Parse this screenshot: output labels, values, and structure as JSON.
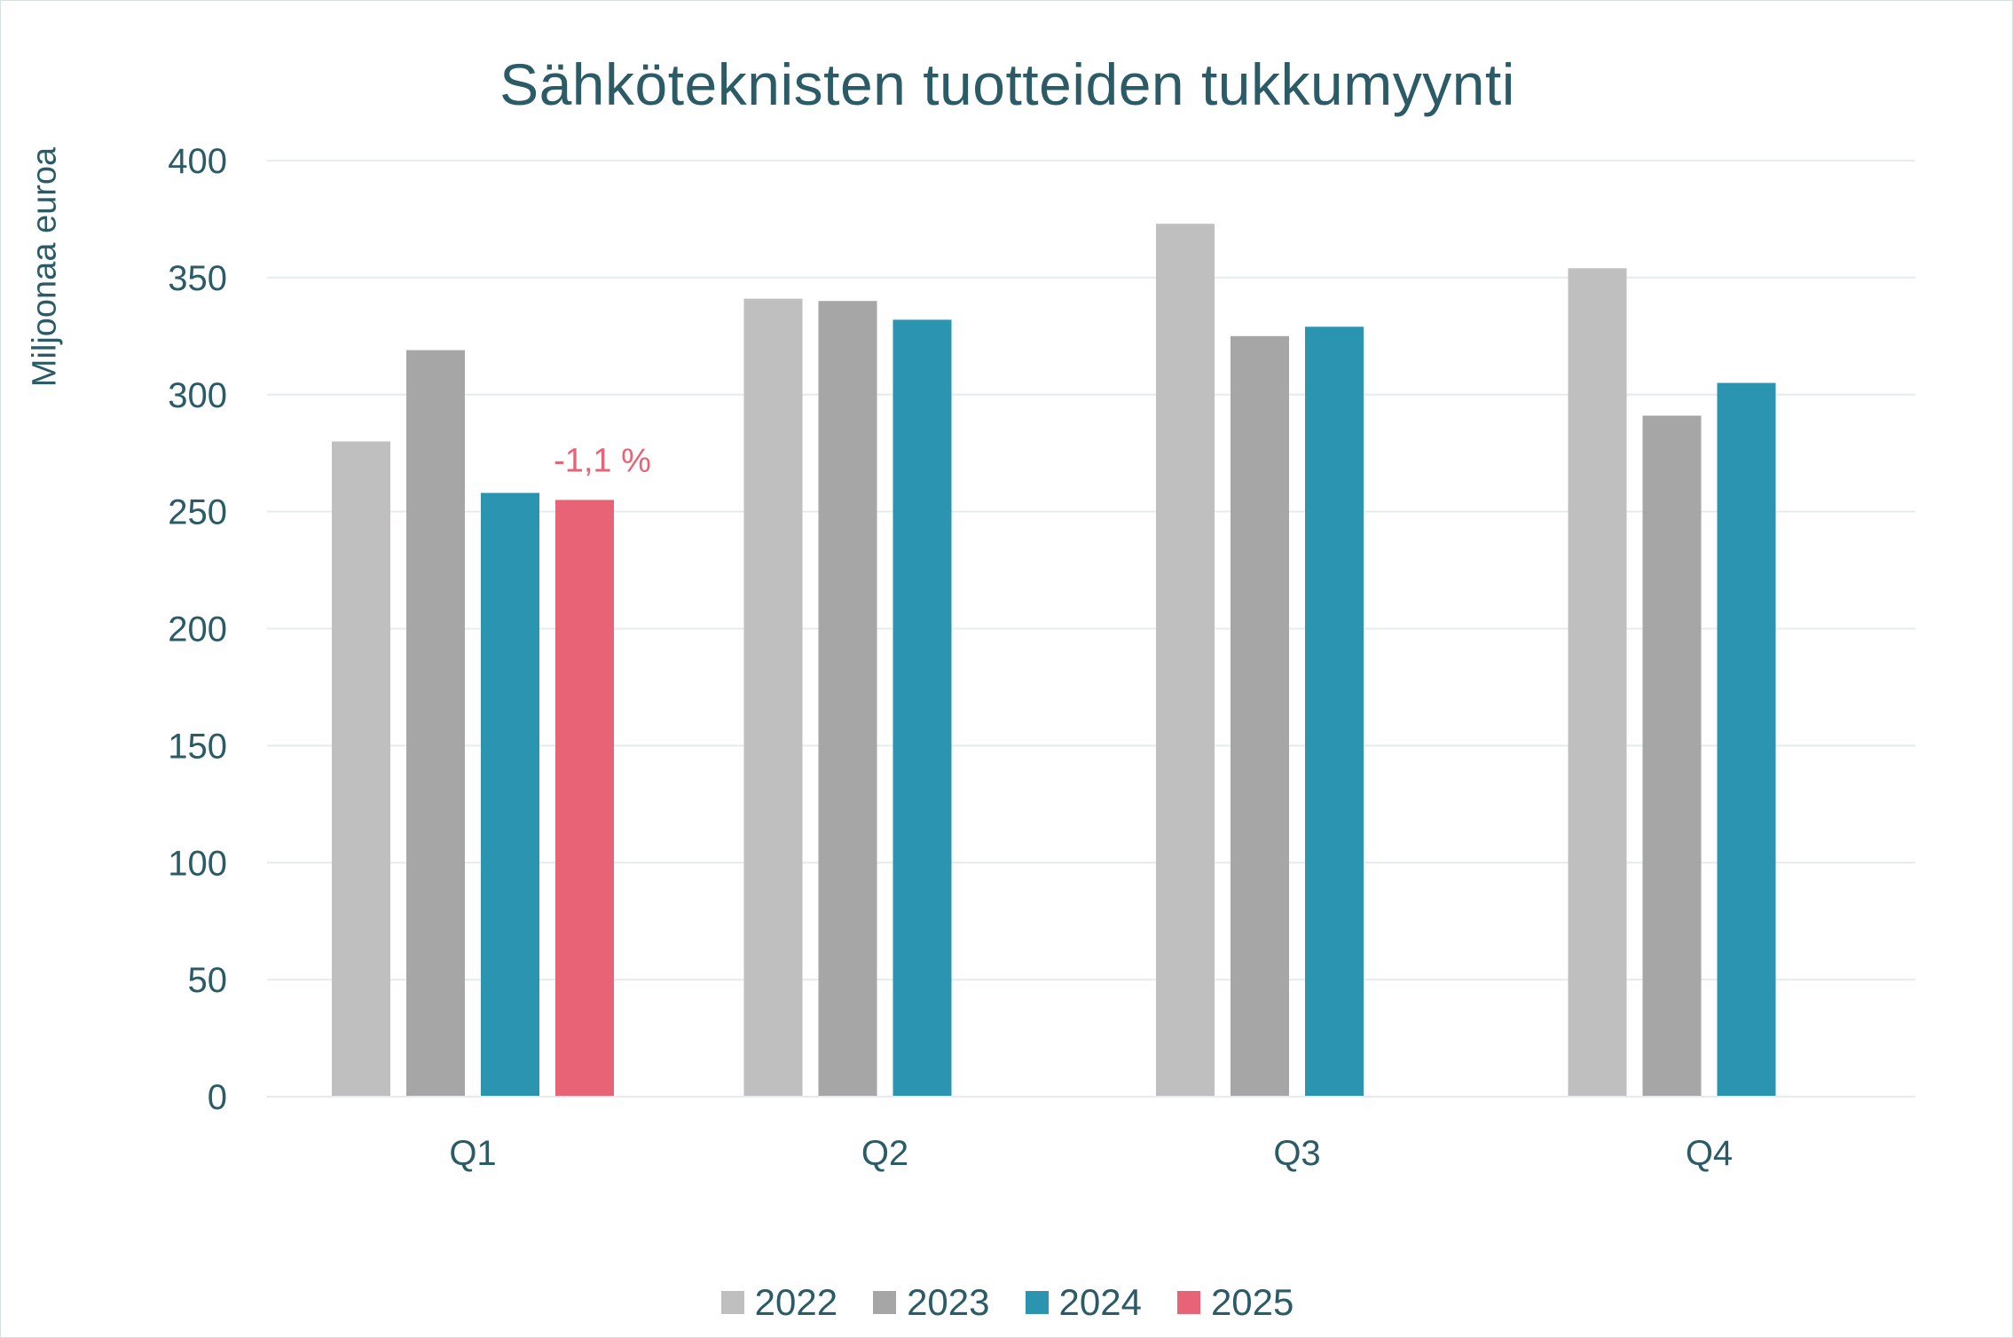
{
  "chart_data": {
    "type": "bar",
    "title": "Sähköteknisten tuotteiden tukkumyynti",
    "ylabel": "Miljoonaa euroa",
    "xlabel": "",
    "ylim": [
      0,
      400
    ],
    "yticks": [
      0,
      50,
      100,
      150,
      200,
      250,
      300,
      350,
      400
    ],
    "ytick_labels": [
      "0",
      "50",
      "100",
      "150",
      "200",
      "250",
      "300",
      "350",
      "400"
    ],
    "grid": true,
    "legend_position": "bottom",
    "categories": [
      "Q1",
      "Q2",
      "Q3",
      "Q4"
    ],
    "series": [
      {
        "name": "2022",
        "color": "#bfbfbf",
        "values": [
          280,
          341,
          373,
          354
        ]
      },
      {
        "name": "2023",
        "color": "#a6a6a6",
        "values": [
          319,
          340,
          325,
          291
        ]
      },
      {
        "name": "2024",
        "color": "#2b94b1",
        "values": [
          258,
          332,
          329,
          305
        ]
      },
      {
        "name": "2025",
        "color": "#e86375",
        "values": [
          255,
          null,
          null,
          null
        ]
      }
    ],
    "annotations": [
      {
        "text": "-1,1 %",
        "category": "Q1",
        "series": "2025",
        "color": "#e86375"
      }
    ]
  }
}
